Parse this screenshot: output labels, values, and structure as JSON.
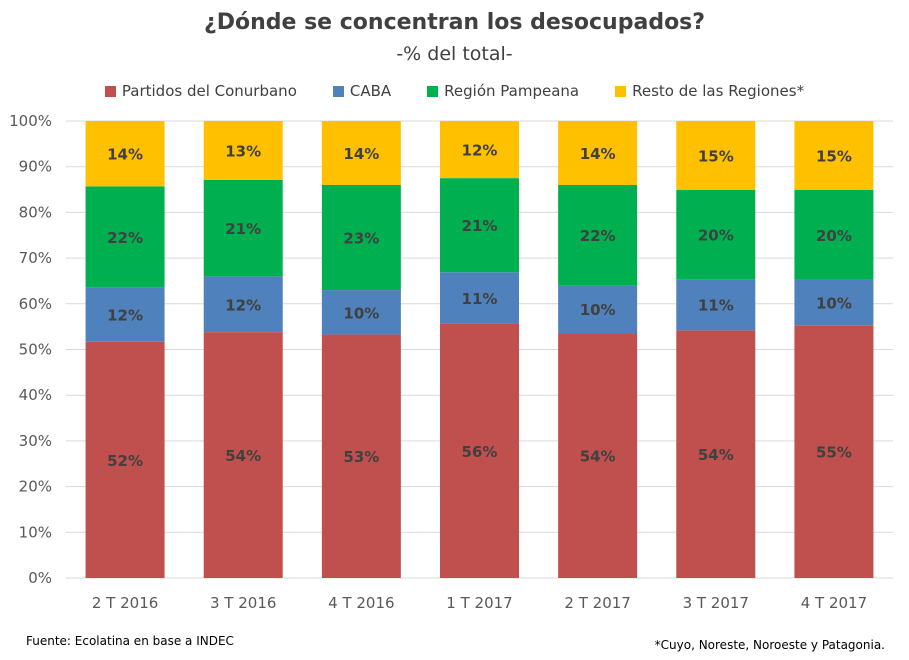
{
  "colors": {
    "series": [
      "#C0504D",
      "#4F81BD",
      "#00B050",
      "#FFC000"
    ],
    "grid": "#D9D9D9",
    "axis_text": "#595959",
    "label_text": "#404040"
  },
  "footer": {
    "source": "Fuente: Ecolatina en base a INDEC",
    "note": "*Cuyo, Noreste, Noroeste y Patagonia."
  },
  "chart_data": {
    "type": "bar",
    "stacked": true,
    "percent_stacked": true,
    "title": "¿Dónde se concentran los desocupados?",
    "subtitle": "-% del total-",
    "xlabel": "",
    "ylabel": "",
    "ylim": [
      0,
      100
    ],
    "y_ticks": [
      "0%",
      "10%",
      "20%",
      "30%",
      "40%",
      "50%",
      "60%",
      "70%",
      "80%",
      "90%",
      "100%"
    ],
    "grid": true,
    "legend_position": "top",
    "categories": [
      "2 T 2016",
      "3 T 2016",
      "4 T 2016",
      "1 T 2017",
      "2 T 2017",
      "3 T 2017",
      "4 T 2017"
    ],
    "series": [
      {
        "name": "Partidos del Conurbano",
        "values": [
          51.7,
          53.8,
          53.3,
          55.6,
          53.6,
          54.2,
          55.3
        ],
        "labels": [
          "52%",
          "54%",
          "53%",
          "56%",
          "54%",
          "54%",
          "55%"
        ]
      },
      {
        "name": "CABA",
        "values": [
          11.9,
          12.2,
          9.7,
          11.3,
          10.5,
          11.2,
          10.0
        ],
        "labels": [
          "12%",
          "12%",
          "10%",
          "11%",
          "10%",
          "11%",
          "10%"
        ]
      },
      {
        "name": "Región Pampeana",
        "values": [
          22.1,
          21.1,
          23.0,
          20.6,
          21.9,
          19.5,
          19.6
        ],
        "labels": [
          "22%",
          "21%",
          "23%",
          "21%",
          "22%",
          "20%",
          "20%"
        ]
      },
      {
        "name": "Resto de las Regiones*",
        "values": [
          14.3,
          12.9,
          14.0,
          12.5,
          14.0,
          15.1,
          15.1
        ],
        "labels": [
          "14%",
          "13%",
          "14%",
          "12%",
          "14%",
          "15%",
          "15%"
        ]
      }
    ]
  }
}
